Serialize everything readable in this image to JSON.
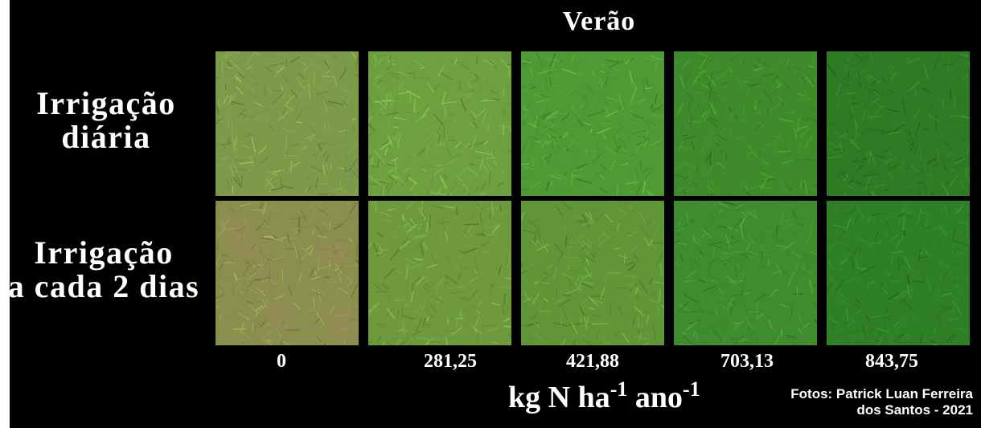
{
  "title": "Verão",
  "rows": [
    {
      "line1": "Irrigação",
      "line2": "diária"
    },
    {
      "line1": "Irrigação",
      "line2": "a cada 2 dias"
    }
  ],
  "doses": [
    "0",
    "281,25",
    "421,88",
    "703,13",
    "843,75"
  ],
  "unit": {
    "kg": "kg N ha",
    "exp1": "-1",
    "ano": " ano",
    "exp2": "-1"
  },
  "credit": {
    "line1": "Fotos: Patrick Luan Ferreira",
    "line2": "dos Santos - 2021"
  },
  "colors": {
    "background": "#000000",
    "photos": [
      [
        "#7c9a4a",
        "#6fa040",
        "#4f9a35",
        "#3f8a2b",
        "#2f7a24"
      ],
      [
        "#8a8f4e",
        "#6e9a3d",
        "#609638",
        "#3f8c2e",
        "#2f7f27"
      ]
    ]
  }
}
